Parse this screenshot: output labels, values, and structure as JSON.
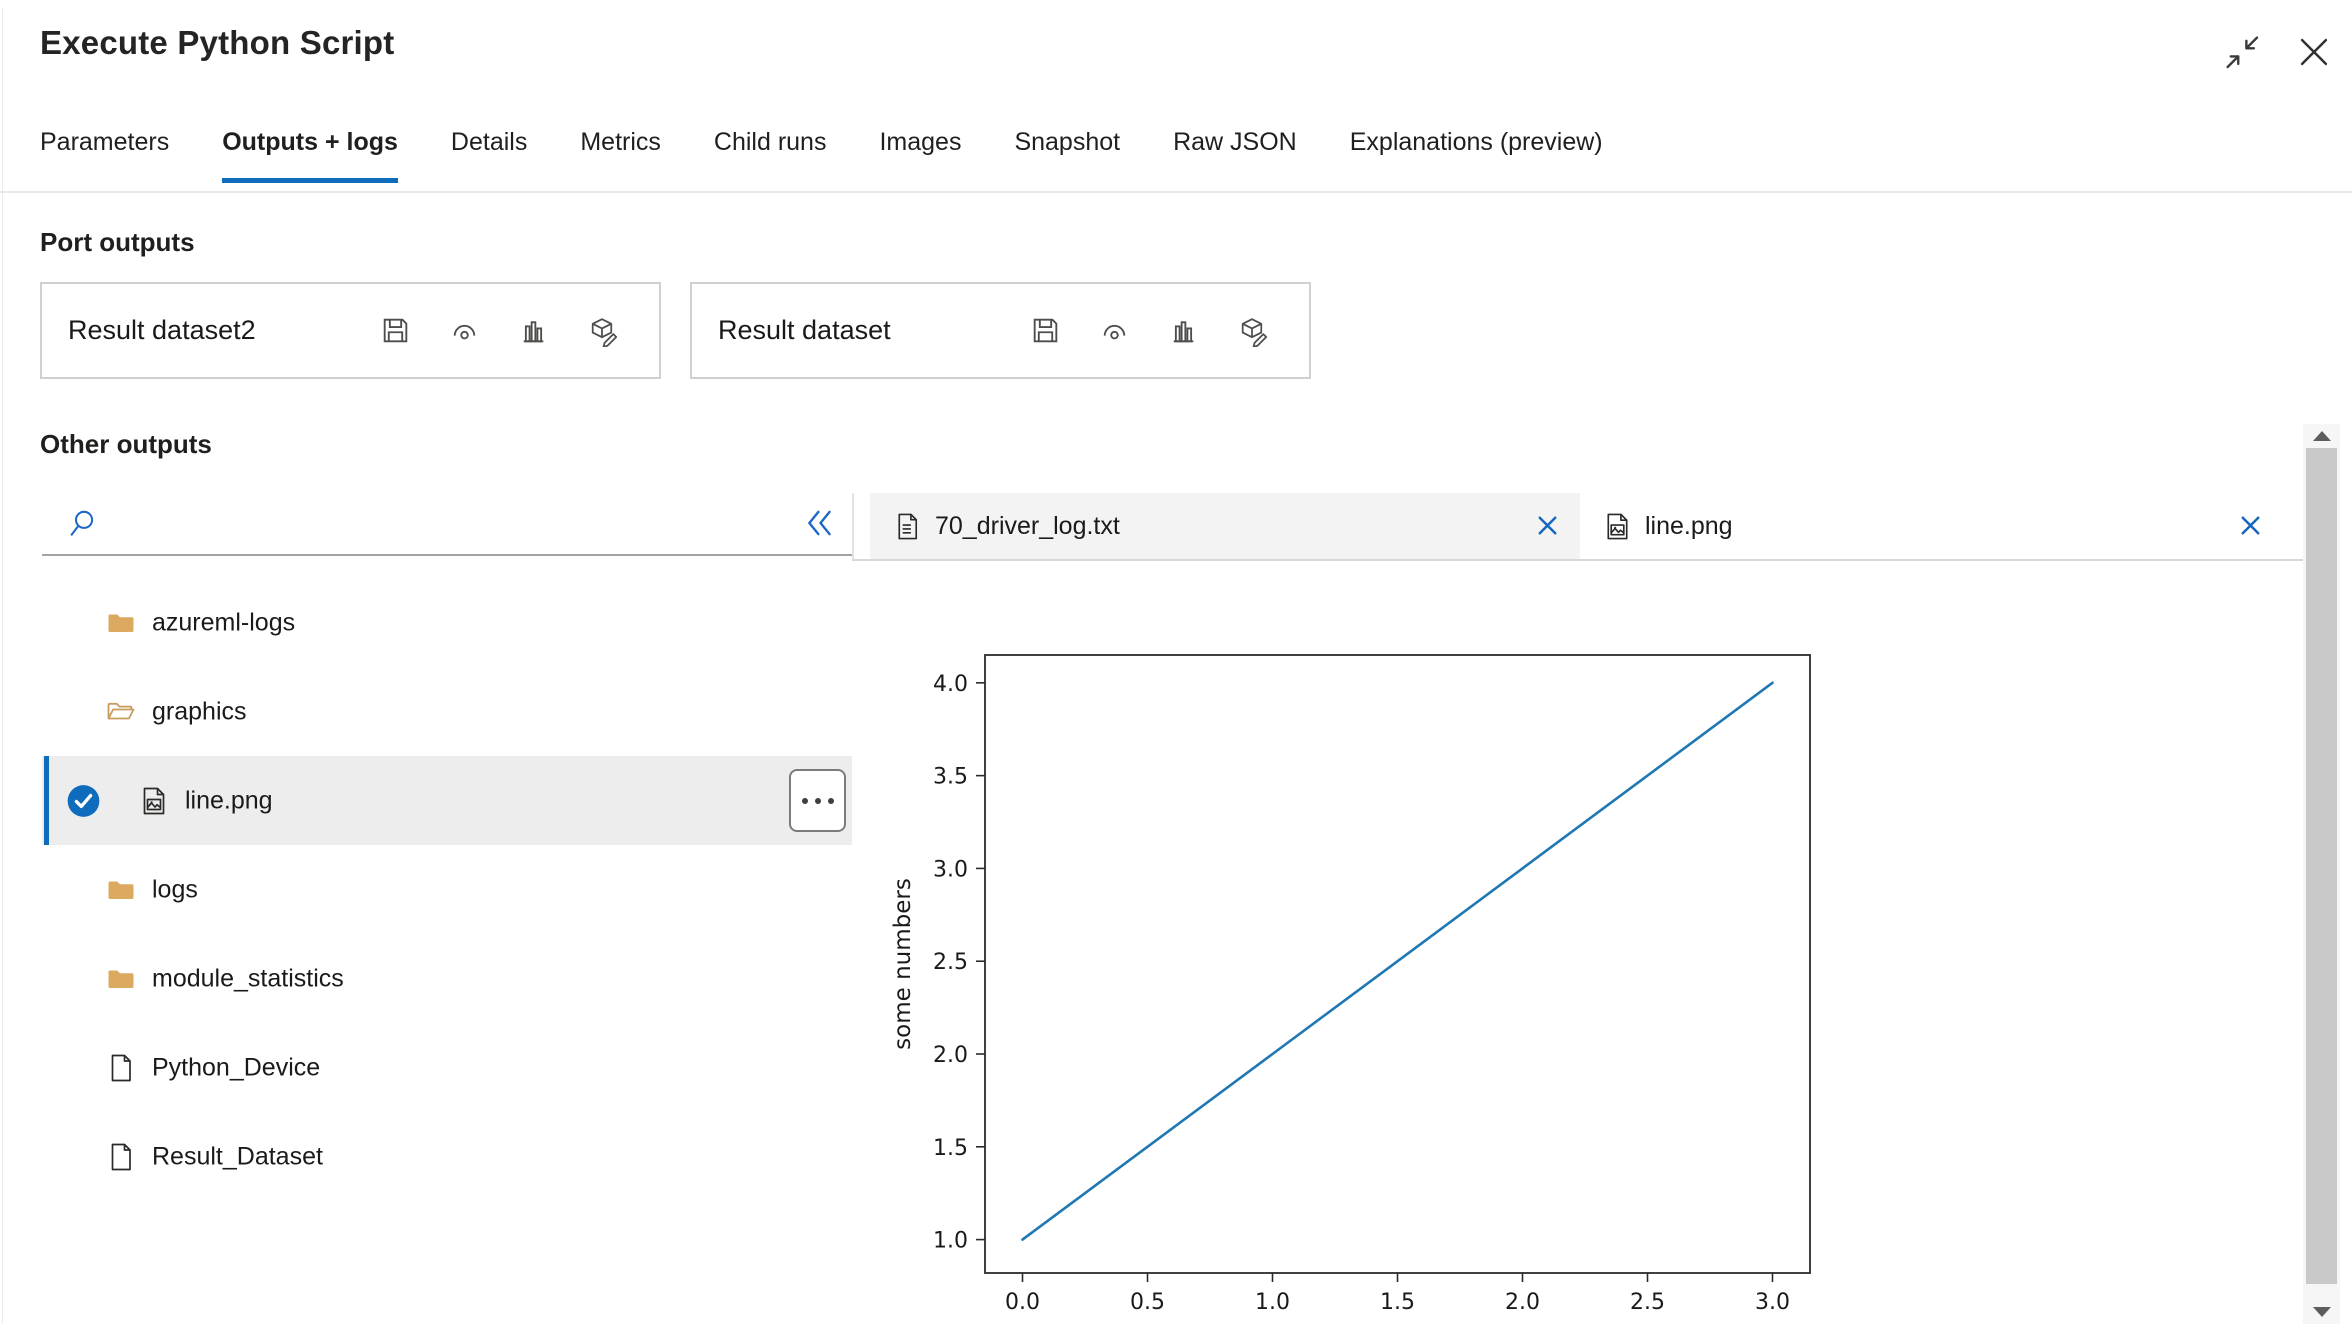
{
  "header": {
    "title": "Execute Python Script",
    "window_controls": [
      "contract-icon",
      "close-icon"
    ]
  },
  "tabs": [
    {
      "label": "Parameters",
      "active": false
    },
    {
      "label": "Outputs + logs",
      "active": true
    },
    {
      "label": "Details",
      "active": false
    },
    {
      "label": "Metrics",
      "active": false
    },
    {
      "label": "Child runs",
      "active": false
    },
    {
      "label": "Images",
      "active": false
    },
    {
      "label": "Snapshot",
      "active": false
    },
    {
      "label": "Raw JSON",
      "active": false
    },
    {
      "label": "Explanations (preview)",
      "active": false
    }
  ],
  "port_outputs": {
    "section_title": "Port outputs",
    "cards": [
      {
        "name": "Result dataset2"
      },
      {
        "name": "Result dataset"
      }
    ],
    "card_actions": [
      "save-icon",
      "visualize-icon",
      "bar-chart-icon",
      "register-dataset-icon"
    ]
  },
  "other_outputs": {
    "section_title": "Other outputs",
    "search": {
      "value": "",
      "placeholder": "",
      "icons": [
        "search-icon",
        "collapse-double-chevron-icon"
      ]
    },
    "tree": [
      {
        "label": "azureml-logs",
        "icon": "folder-closed",
        "selected": false
      },
      {
        "label": "graphics",
        "icon": "folder-open",
        "selected": false
      },
      {
        "label": "line.png",
        "icon": "image-file",
        "selected": true
      },
      {
        "label": "logs",
        "icon": "folder-closed",
        "selected": false
      },
      {
        "label": "module_statistics",
        "icon": "folder-closed",
        "selected": false
      },
      {
        "label": "Python_Device",
        "icon": "file",
        "selected": false
      },
      {
        "label": "Result_Dataset",
        "icon": "file",
        "selected": false
      }
    ],
    "viewer_tabs": [
      {
        "label": "70_driver_log.txt",
        "icon": "text-file",
        "active": false
      },
      {
        "label": "line.png",
        "icon": "image-file",
        "active": true
      }
    ]
  },
  "chart_data": {
    "type": "line",
    "x": [
      0,
      1,
      2,
      3
    ],
    "y": [
      1,
      2,
      3,
      4
    ],
    "title": "",
    "xlabel": "",
    "ylabel": "some numbers",
    "xticks": [
      0.0,
      0.5,
      1.0,
      1.5,
      2.0,
      2.5,
      3.0
    ],
    "yticks": [
      1.0,
      1.5,
      2.0,
      2.5,
      3.0,
      3.5,
      4.0
    ],
    "xlim": [
      -0.15,
      3.15
    ],
    "ylim": [
      0.82,
      4.15
    ],
    "grid": false,
    "legend": null,
    "line_color": "#1f77b4"
  },
  "colors": {
    "accent_blue": "#0F6CBD",
    "folder_tan": "#DCA960",
    "chart_line_blue": "#1F77B4"
  }
}
